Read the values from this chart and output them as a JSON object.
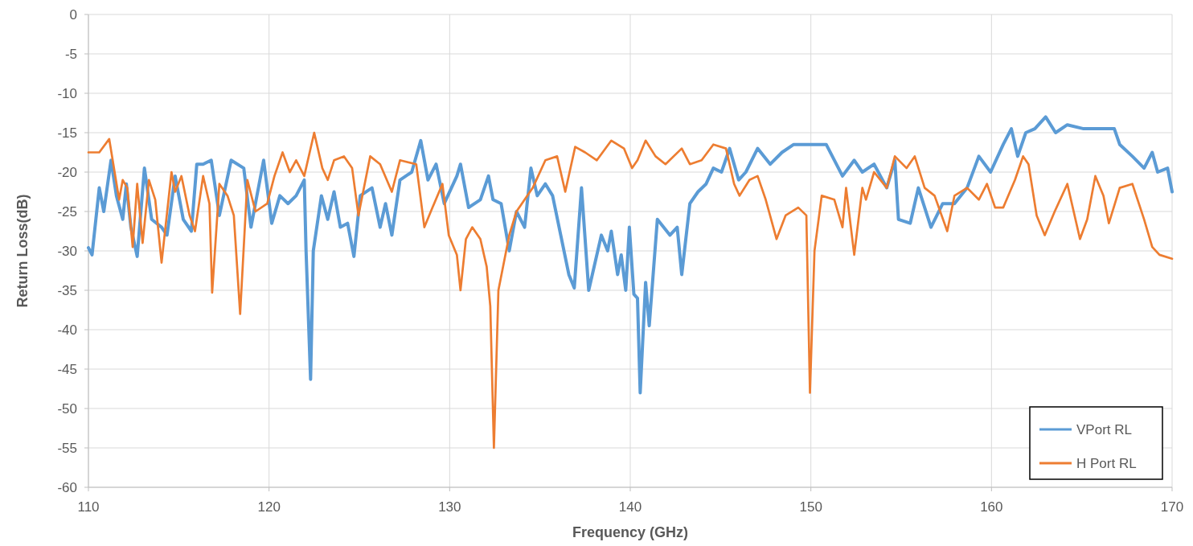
{
  "chart_data": {
    "type": "line",
    "xlabel": "Frequency (GHz)",
    "ylabel": "Return Loss(dB)",
    "xlim": [
      110,
      170
    ],
    "xticks": [
      110,
      120,
      130,
      140,
      150,
      160,
      170
    ],
    "ylim": [
      -60,
      0
    ],
    "yticks": [
      0,
      -5,
      -10,
      -15,
      -20,
      -25,
      -30,
      -35,
      -40,
      -45,
      -50,
      -55,
      -60
    ],
    "grid": true,
    "legend": "bottom right",
    "marker": "none",
    "line_style": "solid",
    "series": [
      {
        "name": "VPort RL",
        "color": "#5b9bd5",
        "x": [
          110,
          110.2,
          110.6,
          110.85,
          111.25,
          111.55,
          111.9,
          112.1,
          112.35,
          112.7,
          113.1,
          113.5,
          114.05,
          114.35,
          114.8,
          115.25,
          115.7,
          116,
          116.35,
          116.8,
          117.25,
          117.9,
          118.6,
          119,
          119.7,
          120.15,
          120.6,
          121.05,
          121.5,
          121.95,
          122.05,
          122.3,
          122.45,
          122.9,
          123.25,
          123.6,
          123.95,
          124.35,
          124.7,
          125.05,
          125.7,
          126.15,
          126.45,
          126.8,
          127.25,
          127.9,
          128.4,
          128.8,
          129.25,
          129.7,
          130.4,
          130.6,
          131.05,
          131.7,
          132.15,
          132.4,
          132.85,
          133.3,
          133.7,
          134.15,
          134.5,
          134.85,
          135.3,
          135.7,
          136.15,
          136.6,
          136.9,
          137.3,
          137.7,
          138.4,
          138.75,
          138.95,
          139.3,
          139.5,
          139.75,
          139.95,
          140.2,
          140.4,
          140.55,
          140.85,
          141.05,
          141.5,
          142.2,
          142.6,
          142.85,
          143.3,
          143.75,
          144.2,
          144.6,
          145.05,
          145.5,
          146,
          146.4,
          147.05,
          147.75,
          148.4,
          149.05,
          149.95,
          150.85,
          151.75,
          152.4,
          152.85,
          153.5,
          154.2,
          154.65,
          154.85,
          155.5,
          155.95,
          156.65,
          157.3,
          157.95,
          158.65,
          159.3,
          159.95,
          160.65,
          161.1,
          161.45,
          161.9,
          162.4,
          163,
          163.55,
          164.2,
          165.1,
          166,
          166.8,
          167.1,
          167.8,
          168.45,
          168.9,
          169.2,
          169.75,
          170
        ],
        "values": [
          -29.6,
          -30.5,
          -22,
          -25,
          -18.5,
          -23,
          -26,
          -21.5,
          -27,
          -30.7,
          -19.5,
          -26,
          -27,
          -28,
          -20.5,
          -26,
          -27.5,
          -19,
          -19,
          -18.5,
          -25.5,
          -18.5,
          -19.5,
          -27,
          -18.5,
          -26.5,
          -23,
          -24,
          -23,
          -21,
          -30,
          -46.3,
          -30,
          -23,
          -26,
          -22.5,
          -27,
          -26.5,
          -30.7,
          -23,
          -22,
          -27,
          -24,
          -28,
          -21,
          -20,
          -16,
          -21,
          -19,
          -24,
          -20.5,
          -19,
          -24.5,
          -23.5,
          -20.5,
          -23.5,
          -24,
          -30,
          -25,
          -27,
          -19.5,
          -23,
          -21.5,
          -23,
          -28,
          -33,
          -34.7,
          -22,
          -35,
          -28,
          -30,
          -27.5,
          -33,
          -30.5,
          -35,
          -27,
          -35.5,
          -36,
          -48,
          -34,
          -39.5,
          -26,
          -28,
          -27,
          -33,
          -24,
          -22.5,
          -21.5,
          -19.5,
          -20,
          -17,
          -21,
          -20,
          -17,
          -19,
          -17.5,
          -16.5,
          -16.5,
          -16.5,
          -20.5,
          -18.5,
          -20,
          -19,
          -22,
          -18.5,
          -26,
          -26.5,
          -22,
          -27,
          -24,
          -24,
          -22,
          -18,
          -20,
          -16.5,
          -14.5,
          -18,
          -15,
          -14.5,
          -13,
          -15,
          -14,
          -14.5,
          -14.5,
          -14.5,
          -16.5,
          -18,
          -19.5,
          -17.5,
          -20,
          -19.5,
          -22.5
        ]
      },
      {
        "name": "H Port RL",
        "color": "#ed7d31",
        "x": [
          110,
          110.6,
          111.15,
          111.45,
          111.7,
          111.9,
          112.15,
          112.45,
          112.7,
          113,
          113.35,
          113.7,
          114.05,
          114.6,
          114.8,
          115.15,
          115.6,
          115.9,
          116.35,
          116.7,
          116.85,
          117.25,
          117.7,
          118.05,
          118.4,
          118.8,
          119.25,
          119.9,
          120.3,
          120.75,
          121.15,
          121.5,
          121.95,
          122.5,
          122.95,
          123.25,
          123.6,
          124.15,
          124.6,
          124.95,
          125.6,
          126.15,
          126.8,
          127.25,
          128.15,
          128.6,
          129.05,
          129.6,
          129.95,
          130.4,
          130.6,
          130.9,
          131.25,
          131.7,
          132.05,
          132.25,
          132.45,
          132.7,
          133.3,
          133.7,
          134.15,
          134.6,
          135.3,
          135.95,
          136.4,
          136.95,
          137.5,
          138.15,
          138.95,
          139.65,
          140.1,
          140.4,
          140.85,
          141.4,
          141.95,
          142.85,
          143.3,
          143.95,
          144.6,
          145.3,
          145.75,
          146.05,
          146.6,
          147.05,
          147.5,
          148.1,
          148.6,
          149.3,
          149.75,
          149.95,
          150.2,
          150.6,
          151.3,
          151.75,
          151.95,
          152.4,
          152.85,
          153.05,
          153.5,
          154.2,
          154.65,
          155.3,
          155.75,
          156.3,
          156.85,
          157.55,
          157.95,
          158.65,
          159.3,
          159.75,
          160.2,
          160.65,
          161.3,
          161.75,
          162.05,
          162.5,
          162.95,
          163.5,
          164.2,
          164.9,
          165.3,
          165.75,
          166.2,
          166.5,
          167.1,
          167.8,
          168.45,
          168.9,
          169.3,
          170
        ],
        "values": [
          -17.5,
          -17.5,
          -15.8,
          -20,
          -23.5,
          -21,
          -22,
          -29.5,
          -21.5,
          -29,
          -21,
          -23.5,
          -31.5,
          -20,
          -22.5,
          -20.5,
          -25.5,
          -27.5,
          -20.5,
          -24,
          -35.3,
          -21.5,
          -23,
          -25.5,
          -38,
          -21,
          -25,
          -24,
          -20.5,
          -17.5,
          -20,
          -18.5,
          -20.5,
          -15,
          -19.5,
          -21,
          -18.5,
          -18,
          -19.5,
          -25.5,
          -18,
          -19,
          -22.5,
          -18.5,
          -19,
          -27,
          -24.5,
          -21.5,
          -28,
          -30.5,
          -35,
          -28.5,
          -27,
          -28.5,
          -32,
          -37,
          -55,
          -35,
          -28,
          -25,
          -23.5,
          -22,
          -18.5,
          -18,
          -22.5,
          -16.8,
          -17.5,
          -18.5,
          -16,
          -17,
          -19.5,
          -18.5,
          -16,
          -18,
          -19,
          -17,
          -19,
          -18.5,
          -16.5,
          -17,
          -21.5,
          -23,
          -21,
          -20.5,
          -23.5,
          -28.5,
          -25.5,
          -24.5,
          -25.5,
          -48,
          -30,
          -23,
          -23.5,
          -27,
          -22,
          -30.5,
          -22,
          -23.5,
          -20,
          -22,
          -18,
          -19.5,
          -18,
          -22,
          -23,
          -27.5,
          -23,
          -22,
          -23.5,
          -21.5,
          -24.5,
          -24.5,
          -21,
          -18,
          -19,
          -25.5,
          -28,
          -25,
          -21.5,
          -28.5,
          -26,
          -20.5,
          -23,
          -26.5,
          -22,
          -21.5,
          -26,
          -29.5,
          -30.5,
          -31
        ]
      }
    ]
  }
}
